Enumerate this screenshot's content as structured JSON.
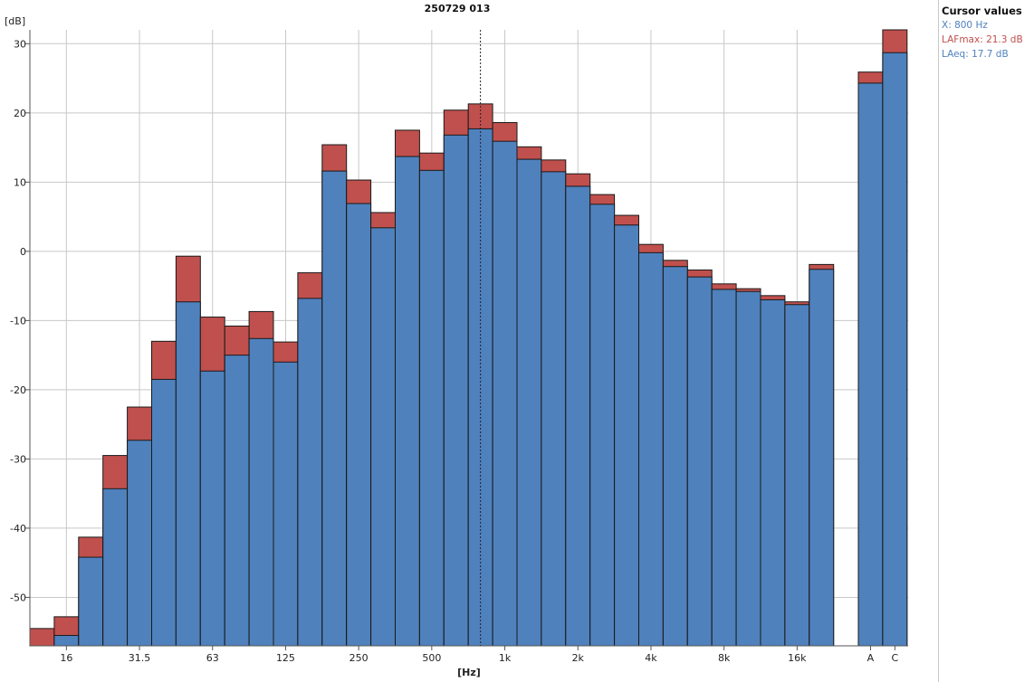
{
  "chart_data": {
    "type": "bar",
    "title": "250729 013",
    "ylabel": "[dB]",
    "xlabel": "[Hz]",
    "ylim": [
      -57,
      32
    ],
    "yticks": [
      30,
      20,
      10,
      0,
      -10,
      -20,
      -30,
      -40,
      -50
    ],
    "grid": true,
    "bands": [
      "12.5",
      "16",
      "20",
      "25",
      "31.5",
      "40",
      "50",
      "63",
      "80",
      "100",
      "125",
      "160",
      "200",
      "250",
      "315",
      "400",
      "500",
      "630",
      "800",
      "1k",
      "1.25k",
      "1.6k",
      "2k",
      "2.5k",
      "3.15k",
      "4k",
      "5k",
      "6.3k",
      "8k",
      "10k",
      "12.5k",
      "16k",
      "20k"
    ],
    "xtick_labels": [
      "16",
      "31.5",
      "63",
      "125",
      "250",
      "500",
      "1k",
      "2k",
      "4k",
      "8k",
      "16k"
    ],
    "series": [
      {
        "name": "LAFmax",
        "color": "#c0504d",
        "values": [
          -54.5,
          -52.8,
          -41.3,
          -29.5,
          -22.5,
          -13.0,
          -0.7,
          -9.5,
          -10.8,
          -8.7,
          -13.1,
          -3.1,
          15.4,
          10.3,
          5.6,
          17.5,
          14.2,
          20.4,
          21.3,
          18.6,
          15.1,
          13.2,
          11.2,
          8.2,
          5.2,
          1.0,
          -1.3,
          -2.7,
          -4.7,
          -5.4,
          -6.4,
          -7.3,
          -1.9
        ],
        "totals": [
          25.9,
          32.0
        ]
      },
      {
        "name": "LAeq",
        "color": "#4f81bd",
        "values": [
          -57.5,
          -55.5,
          -44.2,
          -34.3,
          -27.3,
          -18.5,
          -7.3,
          -17.3,
          -15.0,
          -12.6,
          -16.0,
          -6.8,
          11.6,
          6.9,
          3.4,
          13.7,
          11.7,
          16.8,
          17.7,
          15.9,
          13.3,
          11.5,
          9.4,
          6.8,
          3.8,
          -0.2,
          -2.2,
          -3.7,
          -5.5,
          -5.8,
          -7.0,
          -7.7,
          -2.6
        ],
        "totals": [
          24.3,
          28.7
        ]
      }
    ],
    "totals_labels": [
      "A",
      "C"
    ],
    "cursor_band_index": 18
  },
  "cursor_panel": {
    "title": "Cursor values",
    "x_line": "X: 800 Hz",
    "max_line": "LAFmax: 21.3 dB",
    "eq_line": "LAeq: 17.7 dB",
    "x_color": "#4f81bd",
    "max_color": "#c0504d",
    "eq_color": "#4f81bd"
  }
}
